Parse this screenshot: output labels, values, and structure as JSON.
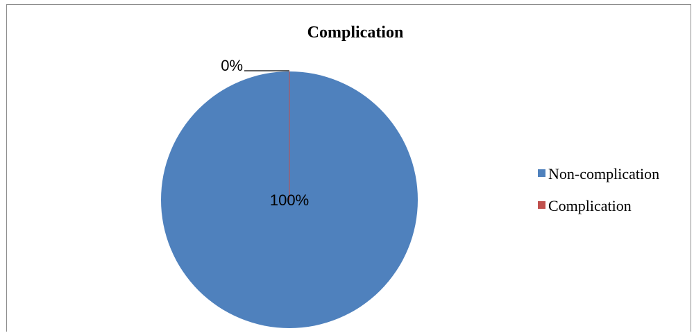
{
  "chart_data": {
    "type": "pie",
    "title": "Complication",
    "categories": [
      "Non-complication",
      "Complication"
    ],
    "values": [
      100,
      0
    ],
    "data_labels": [
      "100%",
      "0%"
    ],
    "colors": [
      "#4f81bd",
      "#c0504d"
    ],
    "legend": {
      "position": "right",
      "entries": [
        "Non-complication",
        "Complication"
      ]
    }
  }
}
